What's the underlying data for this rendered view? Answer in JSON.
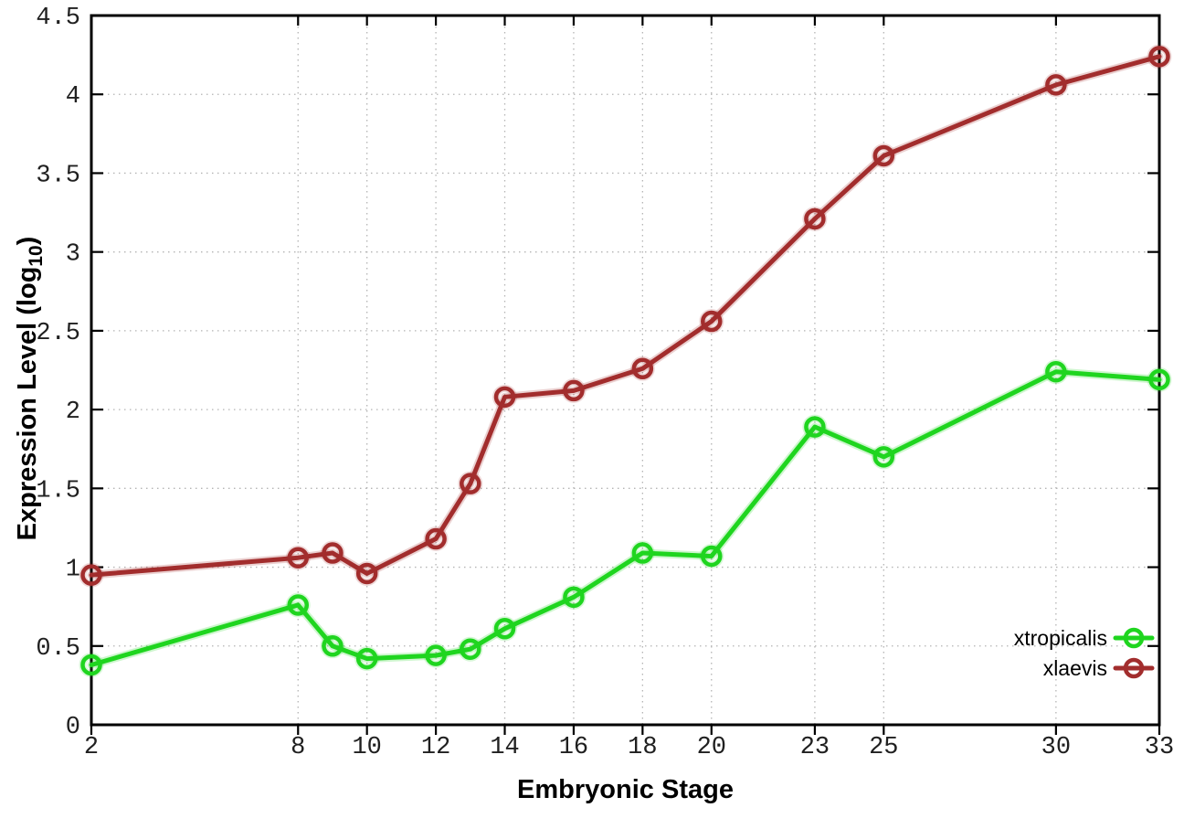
{
  "chart_data": {
    "type": "line",
    "title": "",
    "xlabel": "Embryonic Stage",
    "ylabel": "Expression Level (log10)",
    "ylabel_parts": {
      "prefix": "Expression Level (log",
      "sub": "10",
      "suffix": ")"
    },
    "x": [
      2,
      8,
      9,
      10,
      12,
      13,
      14,
      16,
      18,
      20,
      23,
      25,
      30,
      33
    ],
    "series": [
      {
        "name": "xtropicalis",
        "color": "#1fd51f",
        "values": [
          0.38,
          0.76,
          0.5,
          0.42,
          0.44,
          0.48,
          0.61,
          0.81,
          1.09,
          1.07,
          1.89,
          1.7,
          2.24,
          2.19
        ]
      },
      {
        "name": "xlaevis",
        "color": "#a22d2d",
        "values": [
          0.95,
          1.06,
          1.09,
          0.96,
          1.18,
          1.53,
          2.08,
          2.12,
          2.26,
          2.56,
          3.21,
          3.61,
          4.06,
          4.24
        ]
      }
    ],
    "x_ticks": [
      "2",
      "8",
      "10",
      "12",
      "14",
      "16",
      "18",
      "20",
      "23",
      "25",
      "30",
      "33"
    ],
    "y_ticks": [
      "0",
      "0.5",
      "1",
      "1.5",
      "2",
      "2.5",
      "3",
      "3.5",
      "4",
      "4.5"
    ],
    "xlim": [
      2,
      33
    ],
    "ylim": [
      0,
      4.5
    ],
    "grid": true,
    "legend_position": "inside-bottom-right",
    "legend_entries": [
      "xtropicalis",
      "xlaevis"
    ],
    "marker": "open-circle",
    "colors": {
      "background": "#ffffff",
      "axis": "#000000",
      "grid": "#b4b4b4",
      "tick_label": "#202020"
    }
  }
}
